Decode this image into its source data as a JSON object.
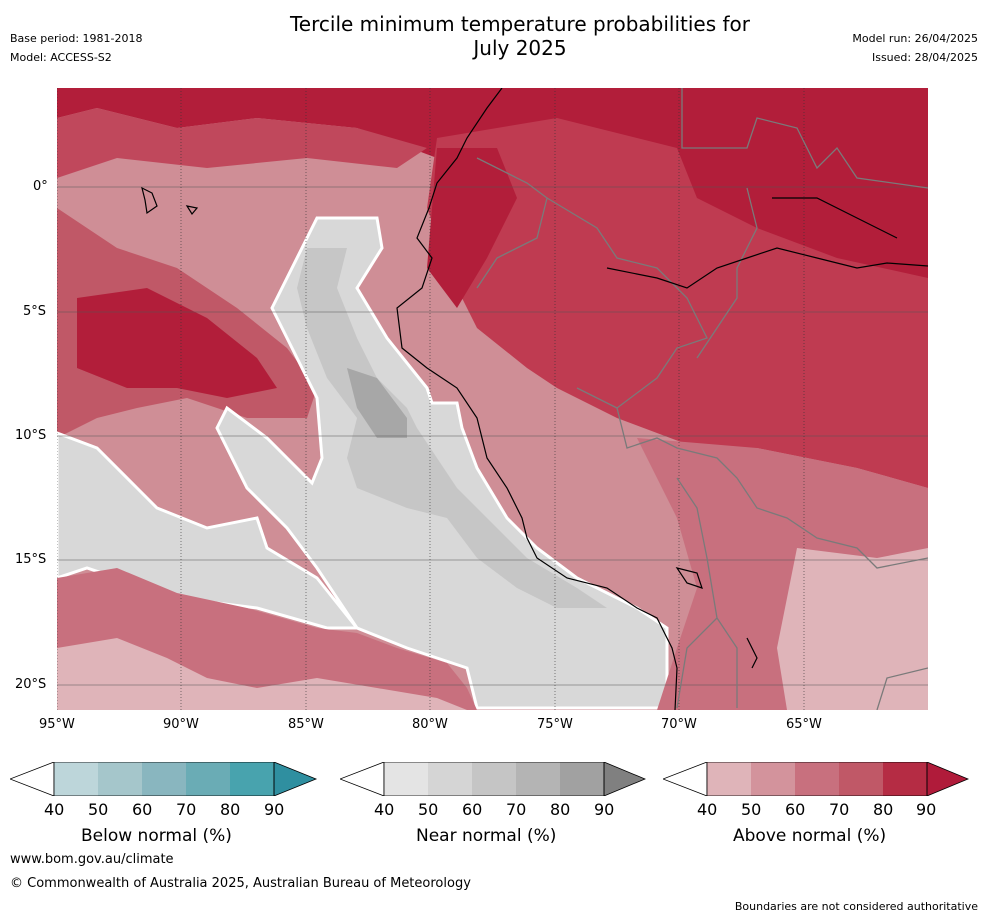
{
  "header": {
    "base_period": "Base period: 1981-2018",
    "model": "Model: ACCESS-S2",
    "title_line1": "Tercile minimum temperature probabilities for",
    "title_line2": "July 2025",
    "model_run": "Model run: 26/04/2025",
    "issued": "Issued: 28/04/2025"
  },
  "map": {
    "region": "Western South America",
    "lat_labels": [
      "0°",
      "5°S",
      "10°S",
      "15°S",
      "20°S"
    ],
    "lon_labels": [
      "95°W",
      "90°W",
      "85°W",
      "80°W",
      "75°W",
      "70°W",
      "65°W"
    ],
    "colors": {
      "ocean_above": "#cf8e96",
      "deep_red": "#b21e3a",
      "red": "#bf3b51",
      "mid_red": "#c8606d",
      "light_red": "#dfb4b9",
      "gray_light": "#d8d8d8",
      "gray_mid": "#c6c6c6",
      "gray_dark": "#a7a7a7",
      "border": "#7a7a7a",
      "coast": "#000000"
    }
  },
  "colorbars": [
    {
      "label": "Below normal (%)",
      "ticks": [
        "40",
        "50",
        "60",
        "70",
        "80",
        "90"
      ],
      "colors": [
        "#bdd6da",
        "#a5c6cb",
        "#89b6bf",
        "#6aacb5",
        "#48a3ae",
        "#2f8fa0"
      ]
    },
    {
      "label": "Near normal (%)",
      "ticks": [
        "40",
        "50",
        "60",
        "70",
        "80",
        "90"
      ],
      "colors": [
        "#e4e4e4",
        "#d5d5d5",
        "#c5c5c5",
        "#b4b4b4",
        "#a1a1a1",
        "#808080"
      ]
    },
    {
      "label": "Above normal (%)",
      "ticks": [
        "40",
        "50",
        "60",
        "70",
        "80",
        "90"
      ],
      "colors": [
        "#dfb4b9",
        "#d3939c",
        "#c8707e",
        "#c05867",
        "#b52c44",
        "#b01b3a"
      ]
    }
  ],
  "footer": {
    "website": "www.bom.gov.au/climate",
    "copyright": "© Commonwealth of Australia 2025, Australian Bureau of Meteorology",
    "disclaimer": "Boundaries are not considered authoritative"
  }
}
